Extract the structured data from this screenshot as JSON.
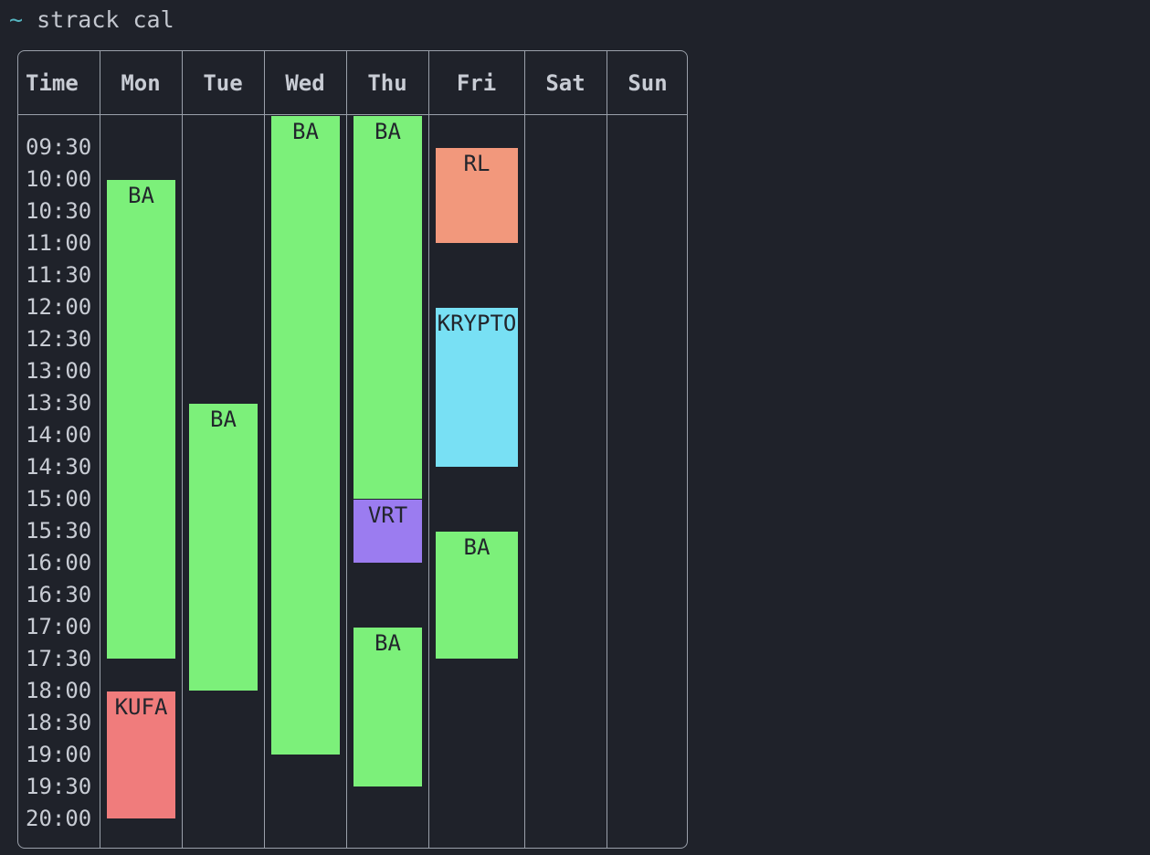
{
  "terminal": {
    "tilde": "~",
    "command": "strack cal"
  },
  "calendar": {
    "headers": [
      "Time",
      "Mon",
      "Tue",
      "Wed",
      "Thu",
      "Fri",
      "Sat",
      "Sun"
    ],
    "times": [
      "09:30",
      "10:00",
      "10:30",
      "11:00",
      "11:30",
      "12:00",
      "12:30",
      "13:00",
      "13:30",
      "14:00",
      "14:30",
      "15:00",
      "15:30",
      "16:00",
      "16:30",
      "17:00",
      "17:30",
      "18:00",
      "18:30",
      "19:00",
      "19:30",
      "20:00"
    ],
    "colors": {
      "BA": "#7cf07a",
      "KUFA": "#f07c7c",
      "RL": "#f2987c",
      "KRYPTO": "#78e0f4",
      "VRT": "#9b7cf0"
    },
    "events": [
      {
        "day": "Mon",
        "label": "BA",
        "start": "10:30",
        "end": "17:30"
      },
      {
        "day": "Mon",
        "label": "KUFA",
        "start": "18:30",
        "end": "20:00"
      },
      {
        "day": "Tue",
        "label": "BA",
        "start": "14:00",
        "end": "18:00"
      },
      {
        "day": "Wed",
        "label": "BA",
        "start": "09:30",
        "end": "19:00"
      },
      {
        "day": "Thu",
        "label": "BA",
        "start": "09:30",
        "end": "15:00"
      },
      {
        "day": "Thu",
        "label": "VRT",
        "start": "15:30",
        "end": "16:00"
      },
      {
        "day": "Thu",
        "label": "BA",
        "start": "17:30",
        "end": "19:30"
      },
      {
        "day": "Fri",
        "label": "RL",
        "start": "10:00",
        "end": "11:00"
      },
      {
        "day": "Fri",
        "label": "KRYPTO",
        "start": "12:30",
        "end": "14:30"
      },
      {
        "day": "Fri",
        "label": "BA",
        "start": "16:00",
        "end": "17:30"
      }
    ]
  }
}
